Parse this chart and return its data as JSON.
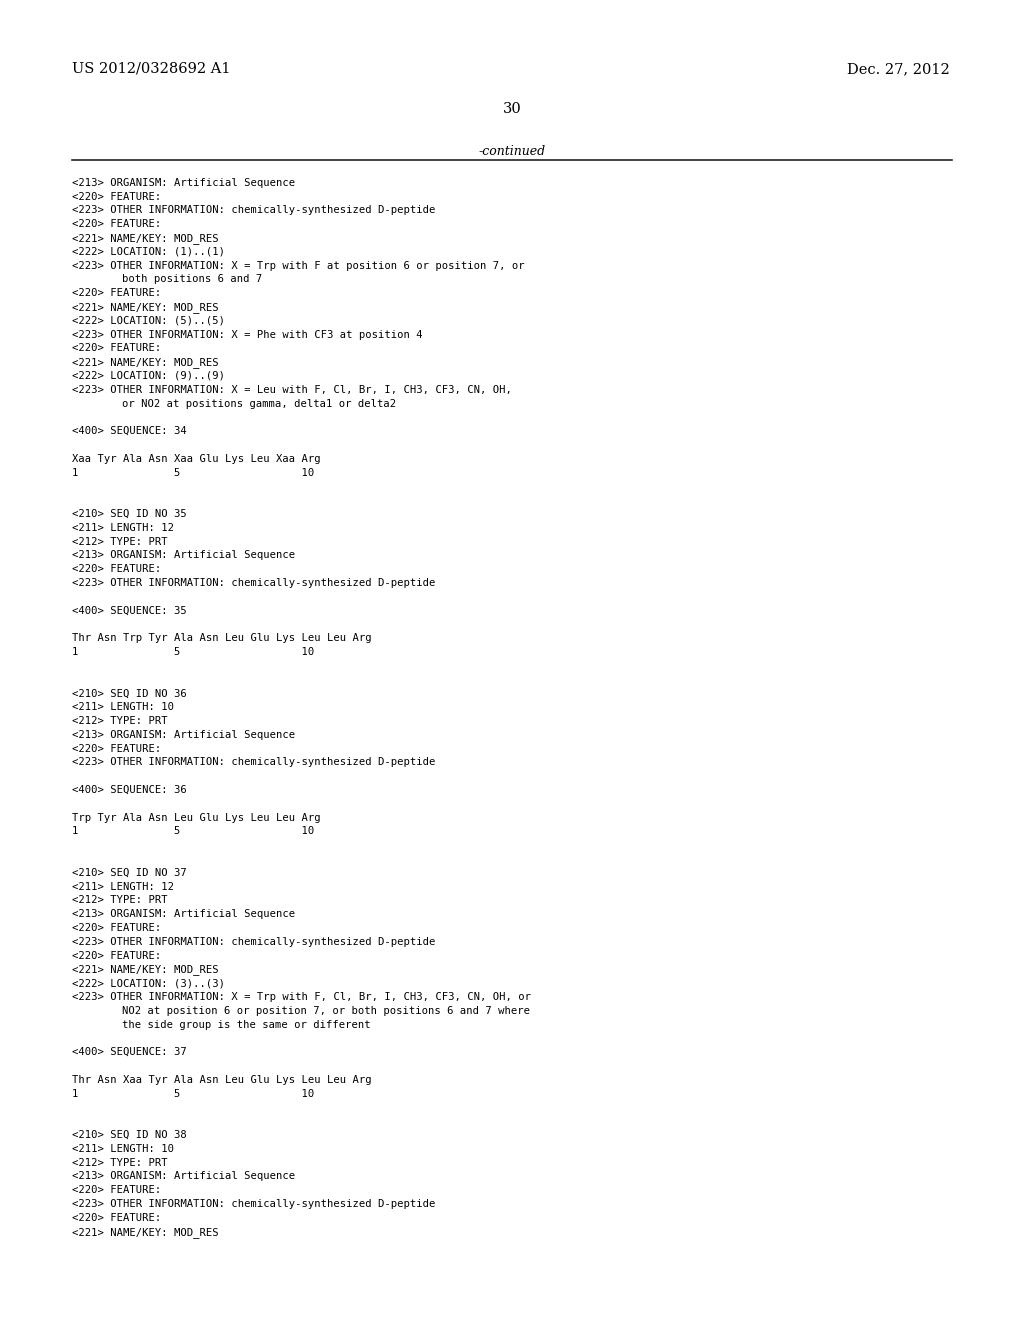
{
  "header_left": "US 2012/0328692 A1",
  "header_right": "Dec. 27, 2012",
  "page_number": "30",
  "continued_label": "-continued",
  "background_color": "#ffffff",
  "text_color": "#000000",
  "lines": [
    "<213> ORGANISM: Artificial Sequence",
    "<220> FEATURE:",
    "<223> OTHER INFORMATION: chemically-synthesized D-peptide",
    "<220> FEATURE:",
    "<221> NAME/KEY: MOD_RES",
    "<222> LOCATION: (1)..(1)",
    "<223> OTHER INFORMATION: X = Trp with F at position 6 or position 7, or",
    "      both positions 6 and 7",
    "<220> FEATURE:",
    "<221> NAME/KEY: MOD_RES",
    "<222> LOCATION: (5)..(5)",
    "<223> OTHER INFORMATION: X = Phe with CF3 at position 4",
    "<220> FEATURE:",
    "<221> NAME/KEY: MOD_RES",
    "<222> LOCATION: (9)..(9)",
    "<223> OTHER INFORMATION: X = Leu with F, Cl, Br, I, CH3, CF3, CN, OH,",
    "      or NO2 at positions gamma, delta1 or delta2",
    "",
    "<400> SEQUENCE: 34",
    "",
    "Xaa Tyr Ala Asn Xaa Glu Lys Leu Xaa Arg",
    "1               5                   10",
    "",
    "",
    "<210> SEQ ID NO 35",
    "<211> LENGTH: 12",
    "<212> TYPE: PRT",
    "<213> ORGANISM: Artificial Sequence",
    "<220> FEATURE:",
    "<223> OTHER INFORMATION: chemically-synthesized D-peptide",
    "",
    "<400> SEQUENCE: 35",
    "",
    "Thr Asn Trp Tyr Ala Asn Leu Glu Lys Leu Leu Arg",
    "1               5                   10",
    "",
    "",
    "<210> SEQ ID NO 36",
    "<211> LENGTH: 10",
    "<212> TYPE: PRT",
    "<213> ORGANISM: Artificial Sequence",
    "<220> FEATURE:",
    "<223> OTHER INFORMATION: chemically-synthesized D-peptide",
    "",
    "<400> SEQUENCE: 36",
    "",
    "Trp Tyr Ala Asn Leu Glu Lys Leu Leu Arg",
    "1               5                   10",
    "",
    "",
    "<210> SEQ ID NO 37",
    "<211> LENGTH: 12",
    "<212> TYPE: PRT",
    "<213> ORGANISM: Artificial Sequence",
    "<220> FEATURE:",
    "<223> OTHER INFORMATION: chemically-synthesized D-peptide",
    "<220> FEATURE:",
    "<221> NAME/KEY: MOD_RES",
    "<222> LOCATION: (3)..(3)",
    "<223> OTHER INFORMATION: X = Trp with F, Cl, Br, I, CH3, CF3, CN, OH, or",
    "      NO2 at position 6 or position 7, or both positions 6 and 7 where",
    "      the side group is the same or different",
    "",
    "<400> SEQUENCE: 37",
    "",
    "Thr Asn Xaa Tyr Ala Asn Leu Glu Lys Leu Leu Arg",
    "1               5                   10",
    "",
    "",
    "<210> SEQ ID NO 38",
    "<211> LENGTH: 10",
    "<212> TYPE: PRT",
    "<213> ORGANISM: Artificial Sequence",
    "<220> FEATURE:",
    "<223> OTHER INFORMATION: chemically-synthesized D-peptide",
    "<220> FEATURE:",
    "<221> NAME/KEY: MOD_RES"
  ]
}
